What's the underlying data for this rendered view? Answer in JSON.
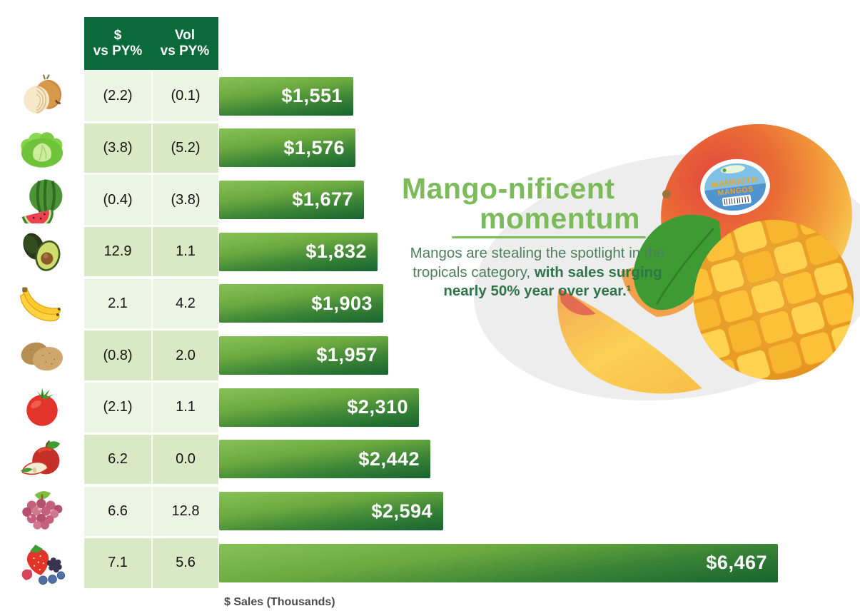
{
  "colors": {
    "header-green": "#0b6a39",
    "row-light": "#ecf4e3",
    "row-alt": "#d9e9c5",
    "accent-green": "#7bbb5a",
    "body-green": "#4e7f5b",
    "body-green-bold": "#2f7549",
    "bar-green-top": "#87c156",
    "bar-green-bottom": "#17642f"
  },
  "table": {
    "headers": [
      {
        "line1": "$",
        "line2": "vs PY%"
      },
      {
        "line1": "Vol",
        "line2": "vs PY%"
      }
    ]
  },
  "rows": [
    {
      "category": "Onions",
      "icon": "onion-icon",
      "dollar_vs_py": "(2.2)",
      "vol_vs_py": "(0.1)",
      "sales_label": "$1,551",
      "sales_value": 1551
    },
    {
      "category": "Lettuce",
      "icon": "lettuce-icon",
      "dollar_vs_py": "(3.8)",
      "vol_vs_py": "(5.2)",
      "sales_label": "$1,576",
      "sales_value": 1576
    },
    {
      "category": "Watermelon",
      "icon": "watermelon-icon",
      "dollar_vs_py": "(0.4)",
      "vol_vs_py": "(3.8)",
      "sales_label": "$1,677",
      "sales_value": 1677
    },
    {
      "category": "Avocados",
      "icon": "avocado-icon",
      "dollar_vs_py": "12.9",
      "vol_vs_py": "1.1",
      "sales_label": "$1,832",
      "sales_value": 1832
    },
    {
      "category": "Bananas",
      "icon": "banana-icon",
      "dollar_vs_py": "2.1",
      "vol_vs_py": "4.2",
      "sales_label": "$1,903",
      "sales_value": 1903
    },
    {
      "category": "Potatoes",
      "icon": "potato-icon",
      "dollar_vs_py": "(0.8)",
      "vol_vs_py": "2.0",
      "sales_label": "$1,957",
      "sales_value": 1957
    },
    {
      "category": "Tomatoes",
      "icon": "tomato-icon",
      "dollar_vs_py": "(2.1)",
      "vol_vs_py": "1.1",
      "sales_label": "$2,310",
      "sales_value": 2310
    },
    {
      "category": "Apples",
      "icon": "apple-icon",
      "dollar_vs_py": "6.2",
      "vol_vs_py": "0.0",
      "sales_label": "$2,442",
      "sales_value": 2442
    },
    {
      "category": "Grapes",
      "icon": "grapes-icon",
      "dollar_vs_py": "6.6",
      "vol_vs_py": "12.8",
      "sales_label": "$2,594",
      "sales_value": 2594
    },
    {
      "category": "Berries",
      "icon": "berries-icon",
      "dollar_vs_py": "7.1",
      "vol_vs_py": "5.6",
      "sales_label": "$6,467",
      "sales_value": 6467
    }
  ],
  "chart_data": {
    "type": "bar",
    "orientation": "horizontal",
    "title": "",
    "xlabel": "$ Sales (Thousands)",
    "ylabel": "",
    "xlim": [
      0,
      6467
    ],
    "grid": false,
    "categories": [
      "Onions",
      "Lettuce",
      "Watermelon",
      "Avocados",
      "Bananas",
      "Potatoes",
      "Tomatoes",
      "Apples",
      "Grapes",
      "Berries"
    ],
    "series": [
      {
        "name": "$ Sales (Thousands)",
        "values": [
          1551,
          1576,
          1677,
          1832,
          1903,
          1957,
          2310,
          2442,
          2594,
          6467
        ],
        "labels": [
          "$1,551",
          "$1,576",
          "$1,677",
          "$1,832",
          "$1,903",
          "$1,957",
          "$2,310",
          "$2,442",
          "$2,594",
          "$6,467"
        ]
      },
      {
        "name": "$ vs PY%",
        "values": [
          "(2.2)",
          "(3.8)",
          "(0.4)",
          "12.9",
          "2.1",
          "(0.8)",
          "(2.1)",
          "6.2",
          "6.6",
          "7.1"
        ]
      },
      {
        "name": "Vol vs PY%",
        "values": [
          "(0.1)",
          "(5.2)",
          "(3.8)",
          "1.1",
          "4.2",
          "2.0",
          "1.1",
          "0.0",
          "12.8",
          "5.6"
        ]
      }
    ]
  },
  "axis": {
    "xlabel": "$ Sales (Thousands)"
  },
  "callout": {
    "title_line1": "Mango-nificent",
    "title_line2": "momentum",
    "body_regular": "Mangos are stealing the spotlight in the tropicals category, ",
    "body_bold": "with sales surging nearly 50% year over year.¹"
  },
  "mango_sticker": {
    "line1": "MAMMOTH",
    "line2": "MANGOS"
  }
}
